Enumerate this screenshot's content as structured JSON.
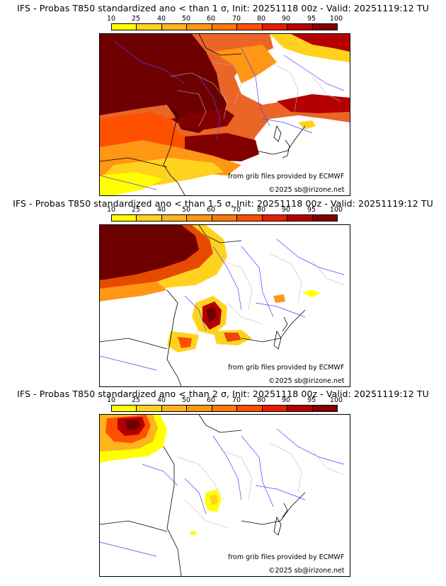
{
  "colorbar": {
    "labels": [
      "10",
      "25",
      "40",
      "50",
      "60",
      "70",
      "80",
      "90",
      "95",
      "100"
    ],
    "colors": [
      "#ffff00",
      "#ffd21e",
      "#ffb41e",
      "#ff9614",
      "#ff780a",
      "#ff5000",
      "#e61e00",
      "#b40000",
      "#820000"
    ]
  },
  "panels": [
    {
      "title": "IFS - Probas T850  standardized ano < than 1 σ, Init: 20251118 00z - Valid: 20251119:12 TU",
      "credit_grib": "from grib files provided by ECMWF",
      "credit_copy": "©2025 sb@irizone.net"
    },
    {
      "title": "IFS - Probas T850  standardized ano < than 1.5 σ, Init: 20251118 00z - Valid: 20251119:12 TU",
      "credit_grib": "from grib files provided by ECMWF",
      "credit_copy": "©2025 sb@irizone.net"
    },
    {
      "title": "IFS - Probas T850  standardized ano < than 2 σ, Init: 20251118 00z - Valid: 20251119:12 TU",
      "credit_grib": "from grib files provided by ECMWF",
      "credit_copy": "©2025 sb@irizone.net"
    }
  ]
}
